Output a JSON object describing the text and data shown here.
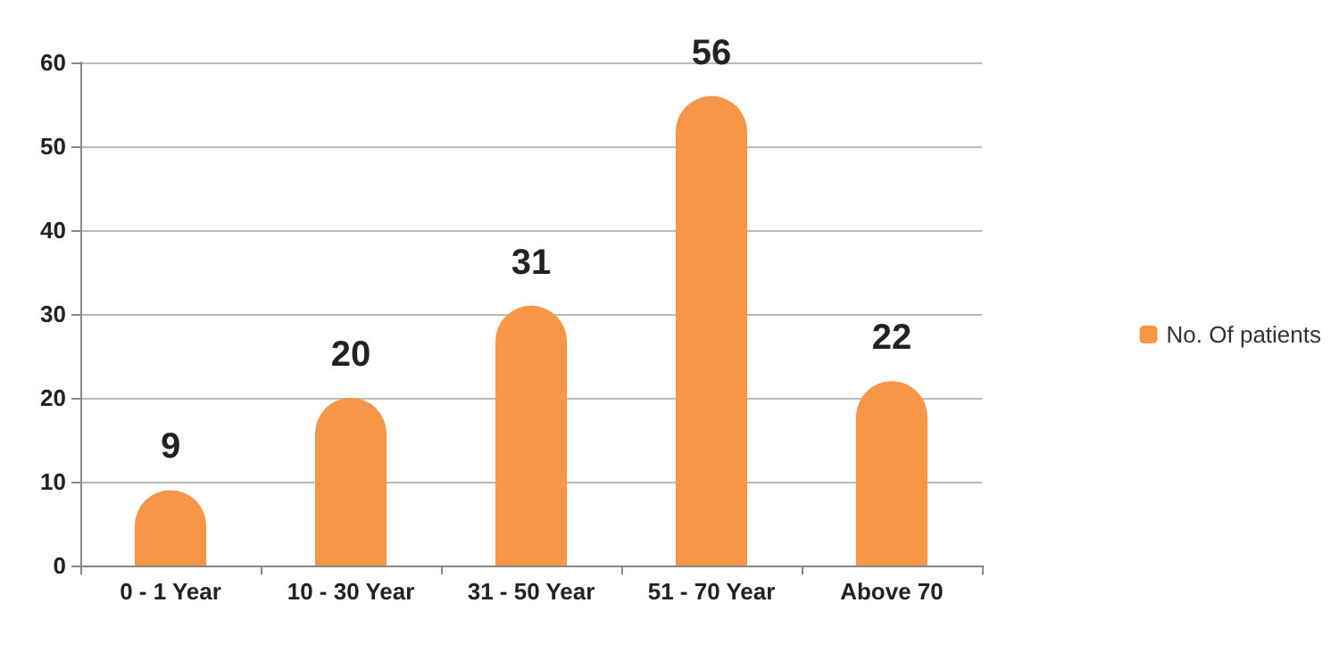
{
  "chart_data": {
    "type": "bar",
    "categories": [
      "0 - 1 Year",
      "10 - 30 Year",
      "31 - 50 Year",
      "51 - 70 Year",
      "Above 70"
    ],
    "series": [
      {
        "name": "No. Of patients",
        "color": "#f79646",
        "values": [
          9,
          20,
          31,
          56,
          22
        ]
      }
    ],
    "ylim": [
      0,
      60
    ],
    "yticks": [
      0,
      10,
      20,
      30,
      40,
      50,
      60
    ],
    "grid": "y",
    "legend": "right",
    "data_labels": true
  }
}
